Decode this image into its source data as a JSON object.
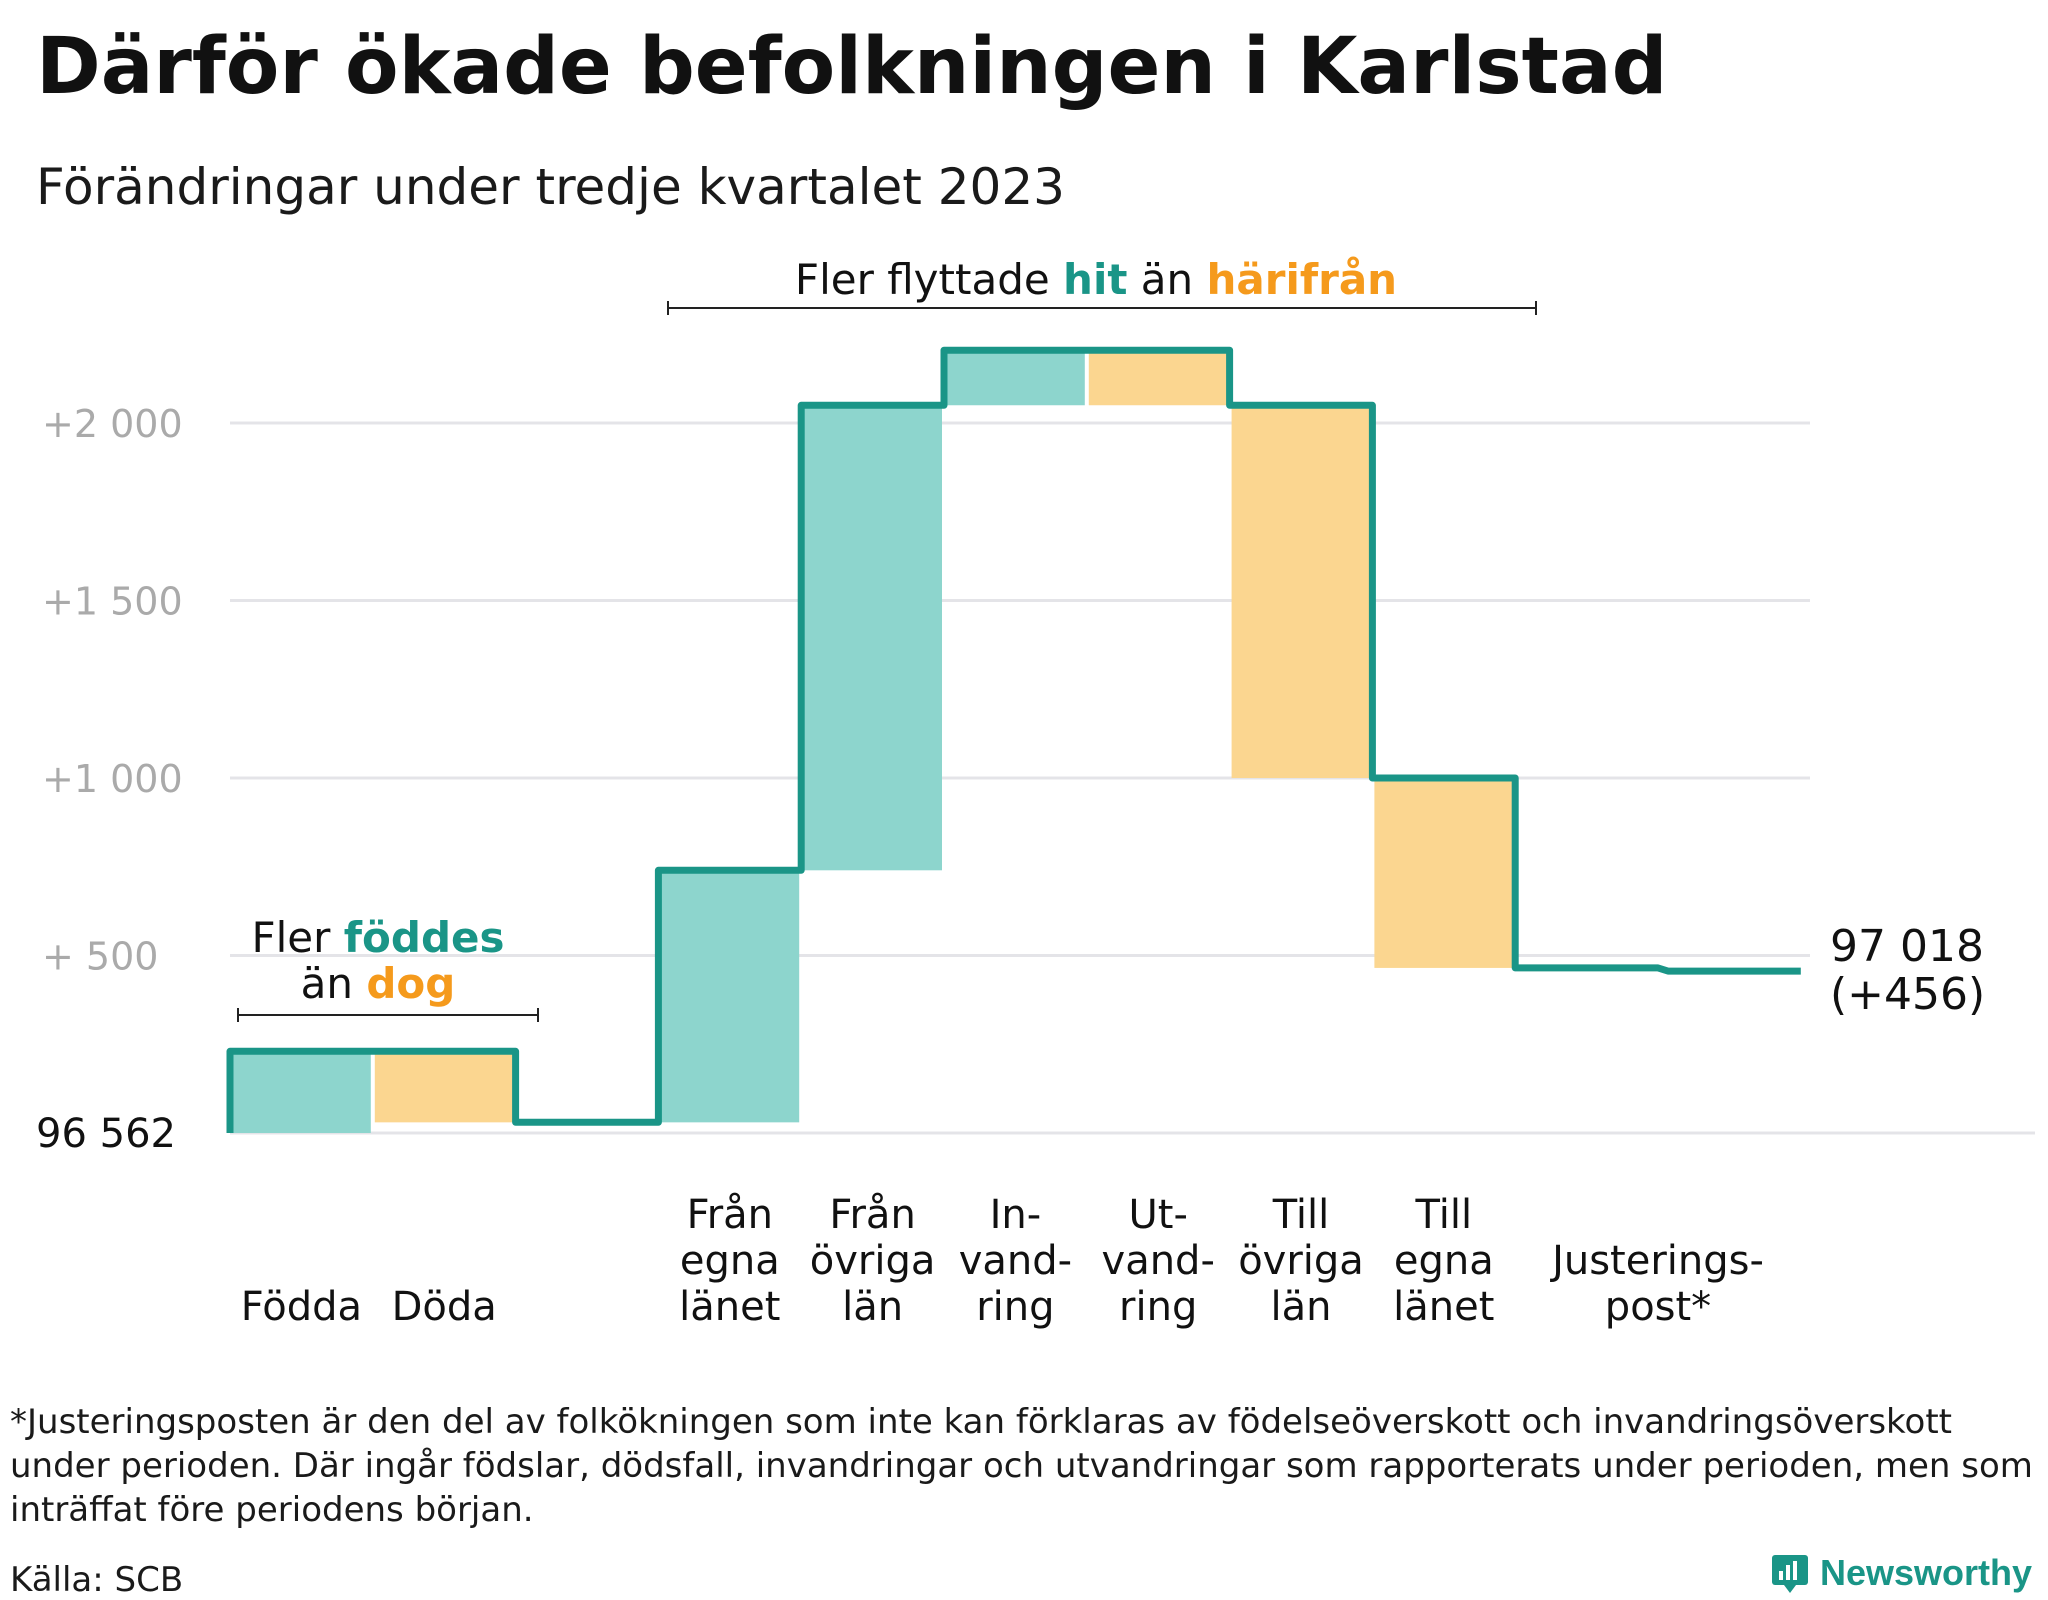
{
  "header": {
    "title": "Därför ökade befolkningen i Karlstad",
    "subtitle": "Förändringar under tredje kvartalet 2023"
  },
  "colors": {
    "teal": "#1a9587",
    "teal_fill": "#8dd5cd",
    "orange": "#f59a1c",
    "orange_fill": "#fbd690",
    "grid": "#e4e4e8",
    "axis_text": "#aaaaaa"
  },
  "annotations": {
    "births": {
      "prefix": "Fler",
      "highlight1": "föddes",
      "middle": "än",
      "highlight2": "dog"
    },
    "moves": {
      "prefix": "Fler flyttade",
      "highlight1": "hit",
      "middle": "än",
      "highlight2": "härifrån"
    }
  },
  "chart_data": {
    "type": "waterfall",
    "title": "Därför ökade befolkningen i Karlstad",
    "subtitle": "Förändringar under tredje kvartalet 2023",
    "baseline": 96562,
    "baseline_label": "96 562",
    "end_value_label": "97 018",
    "end_change_label": "(+456)",
    "ylim": [
      0,
      2250
    ],
    "yticks": [
      {
        "value": 500,
        "label": "+ 500"
      },
      {
        "value": 1000,
        "label": "+1 000"
      },
      {
        "value": 1500,
        "label": "+1 500"
      },
      {
        "value": 2000,
        "label": "+2 000"
      }
    ],
    "grid": true,
    "steps": [
      {
        "label": "Född­a",
        "text": "Födda",
        "start": 0,
        "end": 230,
        "direction": "up"
      },
      {
        "label": "Döda",
        "text": "Döda",
        "start": 230,
        "end": 30,
        "direction": "down"
      },
      {
        "label": "",
        "text": "",
        "start": 30,
        "end": 30,
        "direction": "none"
      },
      {
        "text": "Från\negna\nlänet",
        "start": 30,
        "end": 740,
        "direction": "up"
      },
      {
        "text": "Från\növriga\nlän",
        "start": 740,
        "end": 2050,
        "direction": "up"
      },
      {
        "text": "In-\nvand-\nring",
        "start": 2050,
        "end": 2205,
        "direction": "up"
      },
      {
        "text": "Ut-\nvand-\nring",
        "start": 2205,
        "end": 2050,
        "direction": "down"
      },
      {
        "text": "Till\növriga\nlän",
        "start": 2050,
        "end": 1000,
        "direction": "down"
      },
      {
        "text": "Till\negna\nlänet",
        "start": 1000,
        "end": 465,
        "direction": "down"
      },
      {
        "text": "Justerings-\npost*",
        "start": 465,
        "end": 456,
        "direction": "down",
        "span": 2
      }
    ]
  },
  "footnote": "*Justeringsposten är den del av folkökningen som inte kan förklaras av födelseöverskott och invandringsöverskott under perioden. Där ingår födslar, dödsfall, invandringar och utvandringar som rapporterats under perioden, men som inträffat före periodens början.",
  "source": "Källa: SCB",
  "brand": "Newsworthy"
}
